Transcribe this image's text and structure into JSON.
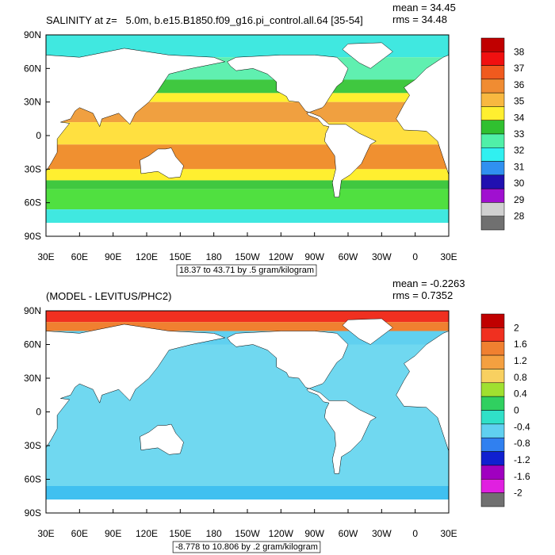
{
  "panels": [
    {
      "title": "SALINITY at z=   5.0m, b.e15.B1850.f09_g16.pi_control.all.64 [35-54]",
      "stats": [
        "mean = 34.45",
        "rms = 34.48"
      ],
      "colorbar_labels": [
        38,
        37,
        36,
        35,
        34,
        33,
        32,
        31,
        30,
        29,
        28
      ],
      "colorbar_colors": [
        "#c00000",
        "#f01010",
        "#f05a1e",
        "#f08c32",
        "#f8b840",
        "#ffef30",
        "#30c030",
        "#50f0a8",
        "#30f0f0",
        "#3090f0",
        "#2010b0",
        "#a010d0",
        "#d0d0d0",
        "#707070"
      ],
      "info": "18.37 to 43.71 by .5 gram/kilogram"
    },
    {
      "title": "(MODEL - LEVITUS/PHC2)",
      "stats": [
        "mean = -0.2263",
        "rms = 0.7352"
      ],
      "colorbar_labels": [
        2,
        1.6,
        1.2,
        0.8,
        0.4,
        0,
        -0.4,
        -0.8,
        -1.2,
        -1.6,
        -2
      ],
      "colorbar_colors": [
        "#c00000",
        "#f03020",
        "#f08030",
        "#f4a040",
        "#f8d060",
        "#a0e030",
        "#30d060",
        "#30e0c8",
        "#60d0f0",
        "#3080f0",
        "#1020d0",
        "#a000c0",
        "#e020e0",
        "#707070"
      ],
      "info": "-8.778 to 10.806 by .2 gram/kilogram"
    }
  ],
  "lon_labels": [
    "30E",
    "60E",
    "90E",
    "120E",
    "150E",
    "180",
    "150W",
    "120W",
    "90W",
    "60W",
    "30W",
    "0",
    "30E"
  ],
  "lat_labels": [
    "90N",
    "60N",
    "30N",
    "0",
    "30S",
    "60S",
    "90S"
  ]
}
